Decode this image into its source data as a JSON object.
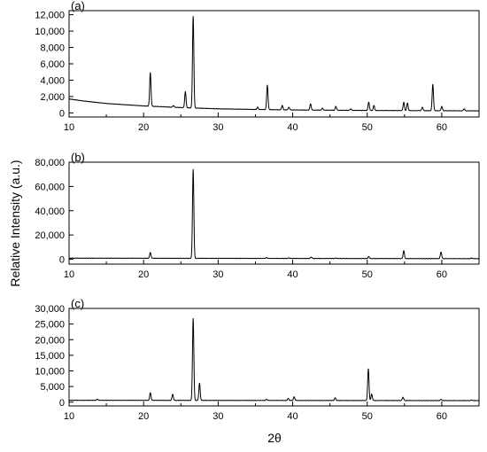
{
  "figure": {
    "ylabel": "Relative Intensity (a.u.)",
    "xlabel": "2θ"
  },
  "chart_data": [
    {
      "type": "line",
      "panel_label": "(a)",
      "xlim": [
        10,
        65
      ],
      "ylim": [
        -500,
        12500
      ],
      "xticks": [
        10,
        20,
        30,
        40,
        50,
        60
      ],
      "yticks": [
        0,
        2000,
        4000,
        6000,
        8000,
        10000,
        12000
      ],
      "ytick_labels": [
        "0",
        "2,000",
        "4,000",
        "6,000",
        "8,000",
        "10,000",
        "12,000"
      ],
      "grid": false,
      "baseline": [
        [
          10,
          1700
        ],
        [
          12,
          1450
        ],
        [
          15,
          1150
        ],
        [
          20,
          850
        ],
        [
          25,
          650
        ],
        [
          30,
          500
        ],
        [
          35,
          420
        ],
        [
          40,
          360
        ],
        [
          50,
          300
        ],
        [
          65,
          250
        ]
      ],
      "peaks": [
        {
          "x": 20.9,
          "y": 4900
        },
        {
          "x": 24.0,
          "y": 900
        },
        {
          "x": 25.6,
          "y": 2600
        },
        {
          "x": 26.65,
          "y": 11800
        },
        {
          "x": 35.3,
          "y": 700
        },
        {
          "x": 36.6,
          "y": 3400
        },
        {
          "x": 38.6,
          "y": 900
        },
        {
          "x": 39.5,
          "y": 700
        },
        {
          "x": 42.4,
          "y": 1100
        },
        {
          "x": 44.0,
          "y": 600
        },
        {
          "x": 45.8,
          "y": 800
        },
        {
          "x": 47.8,
          "y": 500
        },
        {
          "x": 50.2,
          "y": 1300
        },
        {
          "x": 50.9,
          "y": 900
        },
        {
          "x": 54.9,
          "y": 1300
        },
        {
          "x": 55.4,
          "y": 1200
        },
        {
          "x": 57.4,
          "y": 700
        },
        {
          "x": 58.8,
          "y": 3500
        },
        {
          "x": 60.0,
          "y": 800
        },
        {
          "x": 63.0,
          "y": 500
        }
      ]
    },
    {
      "type": "line",
      "panel_label": "(b)",
      "xlim": [
        10,
        65
      ],
      "ylim": [
        -4000,
        80000
      ],
      "xticks": [
        10,
        20,
        30,
        40,
        50,
        60
      ],
      "yticks": [
        0,
        20000,
        40000,
        60000,
        80000
      ],
      "ytick_labels": [
        "0",
        "20,000",
        "40,000",
        "60,000",
        "80,000"
      ],
      "grid": false,
      "baseline": [
        [
          10,
          900
        ],
        [
          65,
          500
        ]
      ],
      "peaks": [
        {
          "x": 20.9,
          "y": 5500
        },
        {
          "x": 26.65,
          "y": 74000
        },
        {
          "x": 36.5,
          "y": 1400
        },
        {
          "x": 39.5,
          "y": 1200
        },
        {
          "x": 42.5,
          "y": 1800
        },
        {
          "x": 45.8,
          "y": 1000
        },
        {
          "x": 50.2,
          "y": 2200
        },
        {
          "x": 54.9,
          "y": 7000
        },
        {
          "x": 59.9,
          "y": 6000
        },
        {
          "x": 64.0,
          "y": 1000
        }
      ]
    },
    {
      "type": "line",
      "panel_label": "(c)",
      "xlim": [
        10,
        65
      ],
      "ylim": [
        -1200,
        30000
      ],
      "xticks": [
        10,
        20,
        30,
        40,
        50,
        60
      ],
      "yticks": [
        0,
        5000,
        10000,
        15000,
        20000,
        25000,
        30000
      ],
      "ytick_labels": [
        "0",
        "5,000",
        "10,000",
        "15,000",
        "20,000",
        "25,000",
        "30,000"
      ],
      "grid": false,
      "baseline": [
        [
          10,
          600
        ],
        [
          65,
          500
        ]
      ],
      "peaks": [
        {
          "x": 13.8,
          "y": 900
        },
        {
          "x": 20.9,
          "y": 3000
        },
        {
          "x": 23.9,
          "y": 2500
        },
        {
          "x": 26.65,
          "y": 26800
        },
        {
          "x": 27.5,
          "y": 6000
        },
        {
          "x": 36.5,
          "y": 900
        },
        {
          "x": 39.4,
          "y": 1200
        },
        {
          "x": 40.2,
          "y": 1700
        },
        {
          "x": 45.7,
          "y": 1400
        },
        {
          "x": 50.15,
          "y": 10600
        },
        {
          "x": 50.6,
          "y": 2600
        },
        {
          "x": 54.8,
          "y": 1600
        },
        {
          "x": 59.9,
          "y": 900
        },
        {
          "x": 64.0,
          "y": 700
        }
      ]
    }
  ]
}
